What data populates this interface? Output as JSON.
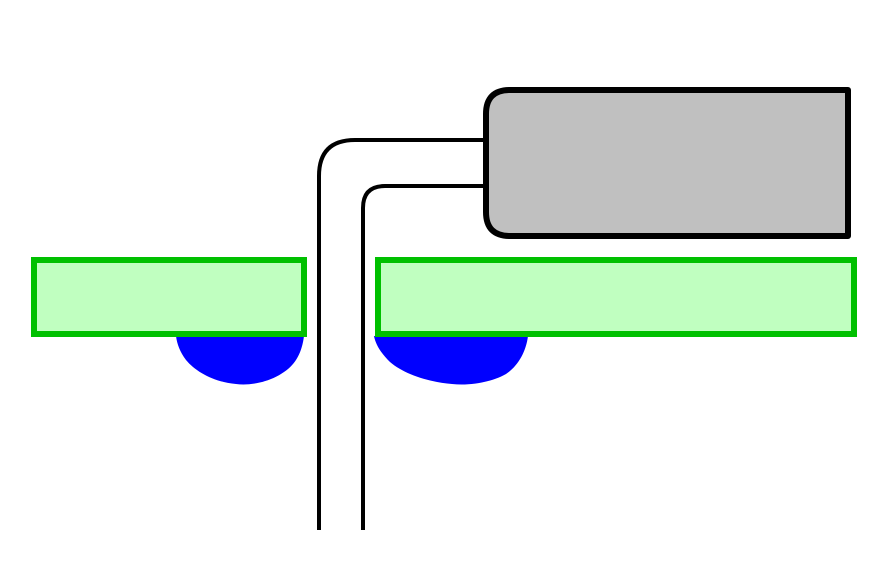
{
  "diagram": {
    "type": "through-hole-solder-joint",
    "colors": {
      "background": "#ffffff",
      "board_fill": "#c0ffc0",
      "board_stroke": "#00c000",
      "solder_fill": "#0000ff",
      "component_fill": "#c0c0c0",
      "component_stroke": "#000000",
      "lead_stroke": "#000000"
    },
    "elements": [
      {
        "name": "circuit-board-left",
        "kind": "board-segment"
      },
      {
        "name": "circuit-board-right",
        "kind": "board-segment"
      },
      {
        "name": "solder-fillet-left",
        "kind": "solder"
      },
      {
        "name": "solder-fillet-right",
        "kind": "solder"
      },
      {
        "name": "component-body",
        "kind": "component"
      },
      {
        "name": "component-lead",
        "kind": "bent-lead"
      }
    ]
  }
}
